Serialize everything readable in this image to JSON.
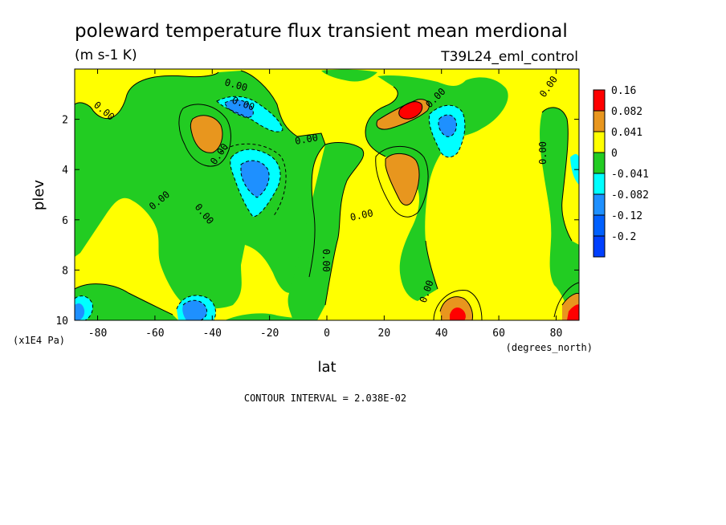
{
  "chart_data": {
    "type": "contour",
    "title": "poleward temperature flux transient mean merdional",
    "units": "(m s-1 K)",
    "experiment": "T39L24_eml_control",
    "xlabel": "lat",
    "xunits": "(degrees_north)",
    "ylabel": "plev",
    "yunits": "(x1E4 Pa)",
    "xlim": [
      -88,
      88
    ],
    "ylim": [
      10,
      0
    ],
    "xticks": [
      -80,
      -60,
      -40,
      -20,
      0,
      20,
      40,
      60,
      80
    ],
    "xtick_labels": [
      "-80",
      "-60",
      "-40",
      "-20",
      "0",
      "20",
      "40",
      "60",
      "80"
    ],
    "yticks": [
      2,
      4,
      6,
      8,
      10
    ],
    "ytick_labels": [
      "2",
      "4",
      "6",
      "8",
      "10"
    ],
    "contour_interval_text": "CONTOUR INTERVAL = 2.038E-02",
    "legend": {
      "levels": [
        "0.16",
        "0.082",
        "0.041",
        "0",
        "-0.041",
        "-0.082",
        "-0.12",
        "-0.2"
      ],
      "colors": [
        "#ff0000",
        "#e8961e",
        "#ffff00",
        "#22cc22",
        "#00ffff",
        "#1e90ff",
        "#0060ff",
        "#0040ff"
      ]
    },
    "contour_labels": [
      "0.00",
      "0.00",
      "0.00",
      "0.00",
      "0.00",
      "0.00",
      "0.00",
      "0.00",
      "0.00",
      "0.00",
      "0.00",
      "0.00",
      "0.00"
    ],
    "features": [
      {
        "lat": -40,
        "plev": 2.4,
        "value": 0.1
      },
      {
        "lat": -28,
        "plev": 1.6,
        "value": -0.08
      },
      {
        "lat": -27,
        "plev": 4.0,
        "value": -0.1
      },
      {
        "lat": 28,
        "plev": 1.8,
        "value": 0.17
      },
      {
        "lat": 26,
        "plev": 4.0,
        "value": 0.09
      },
      {
        "lat": 40,
        "plev": 2.4,
        "value": -0.08
      },
      {
        "lat": -47,
        "plev": 9.5,
        "value": -0.12
      },
      {
        "lat": 45,
        "plev": 9.5,
        "value": 0.12
      },
      {
        "lat": 86,
        "plev": 9.8,
        "value": 0.14
      },
      {
        "lat": -85,
        "plev": 9.8,
        "value": -0.12
      }
    ]
  }
}
